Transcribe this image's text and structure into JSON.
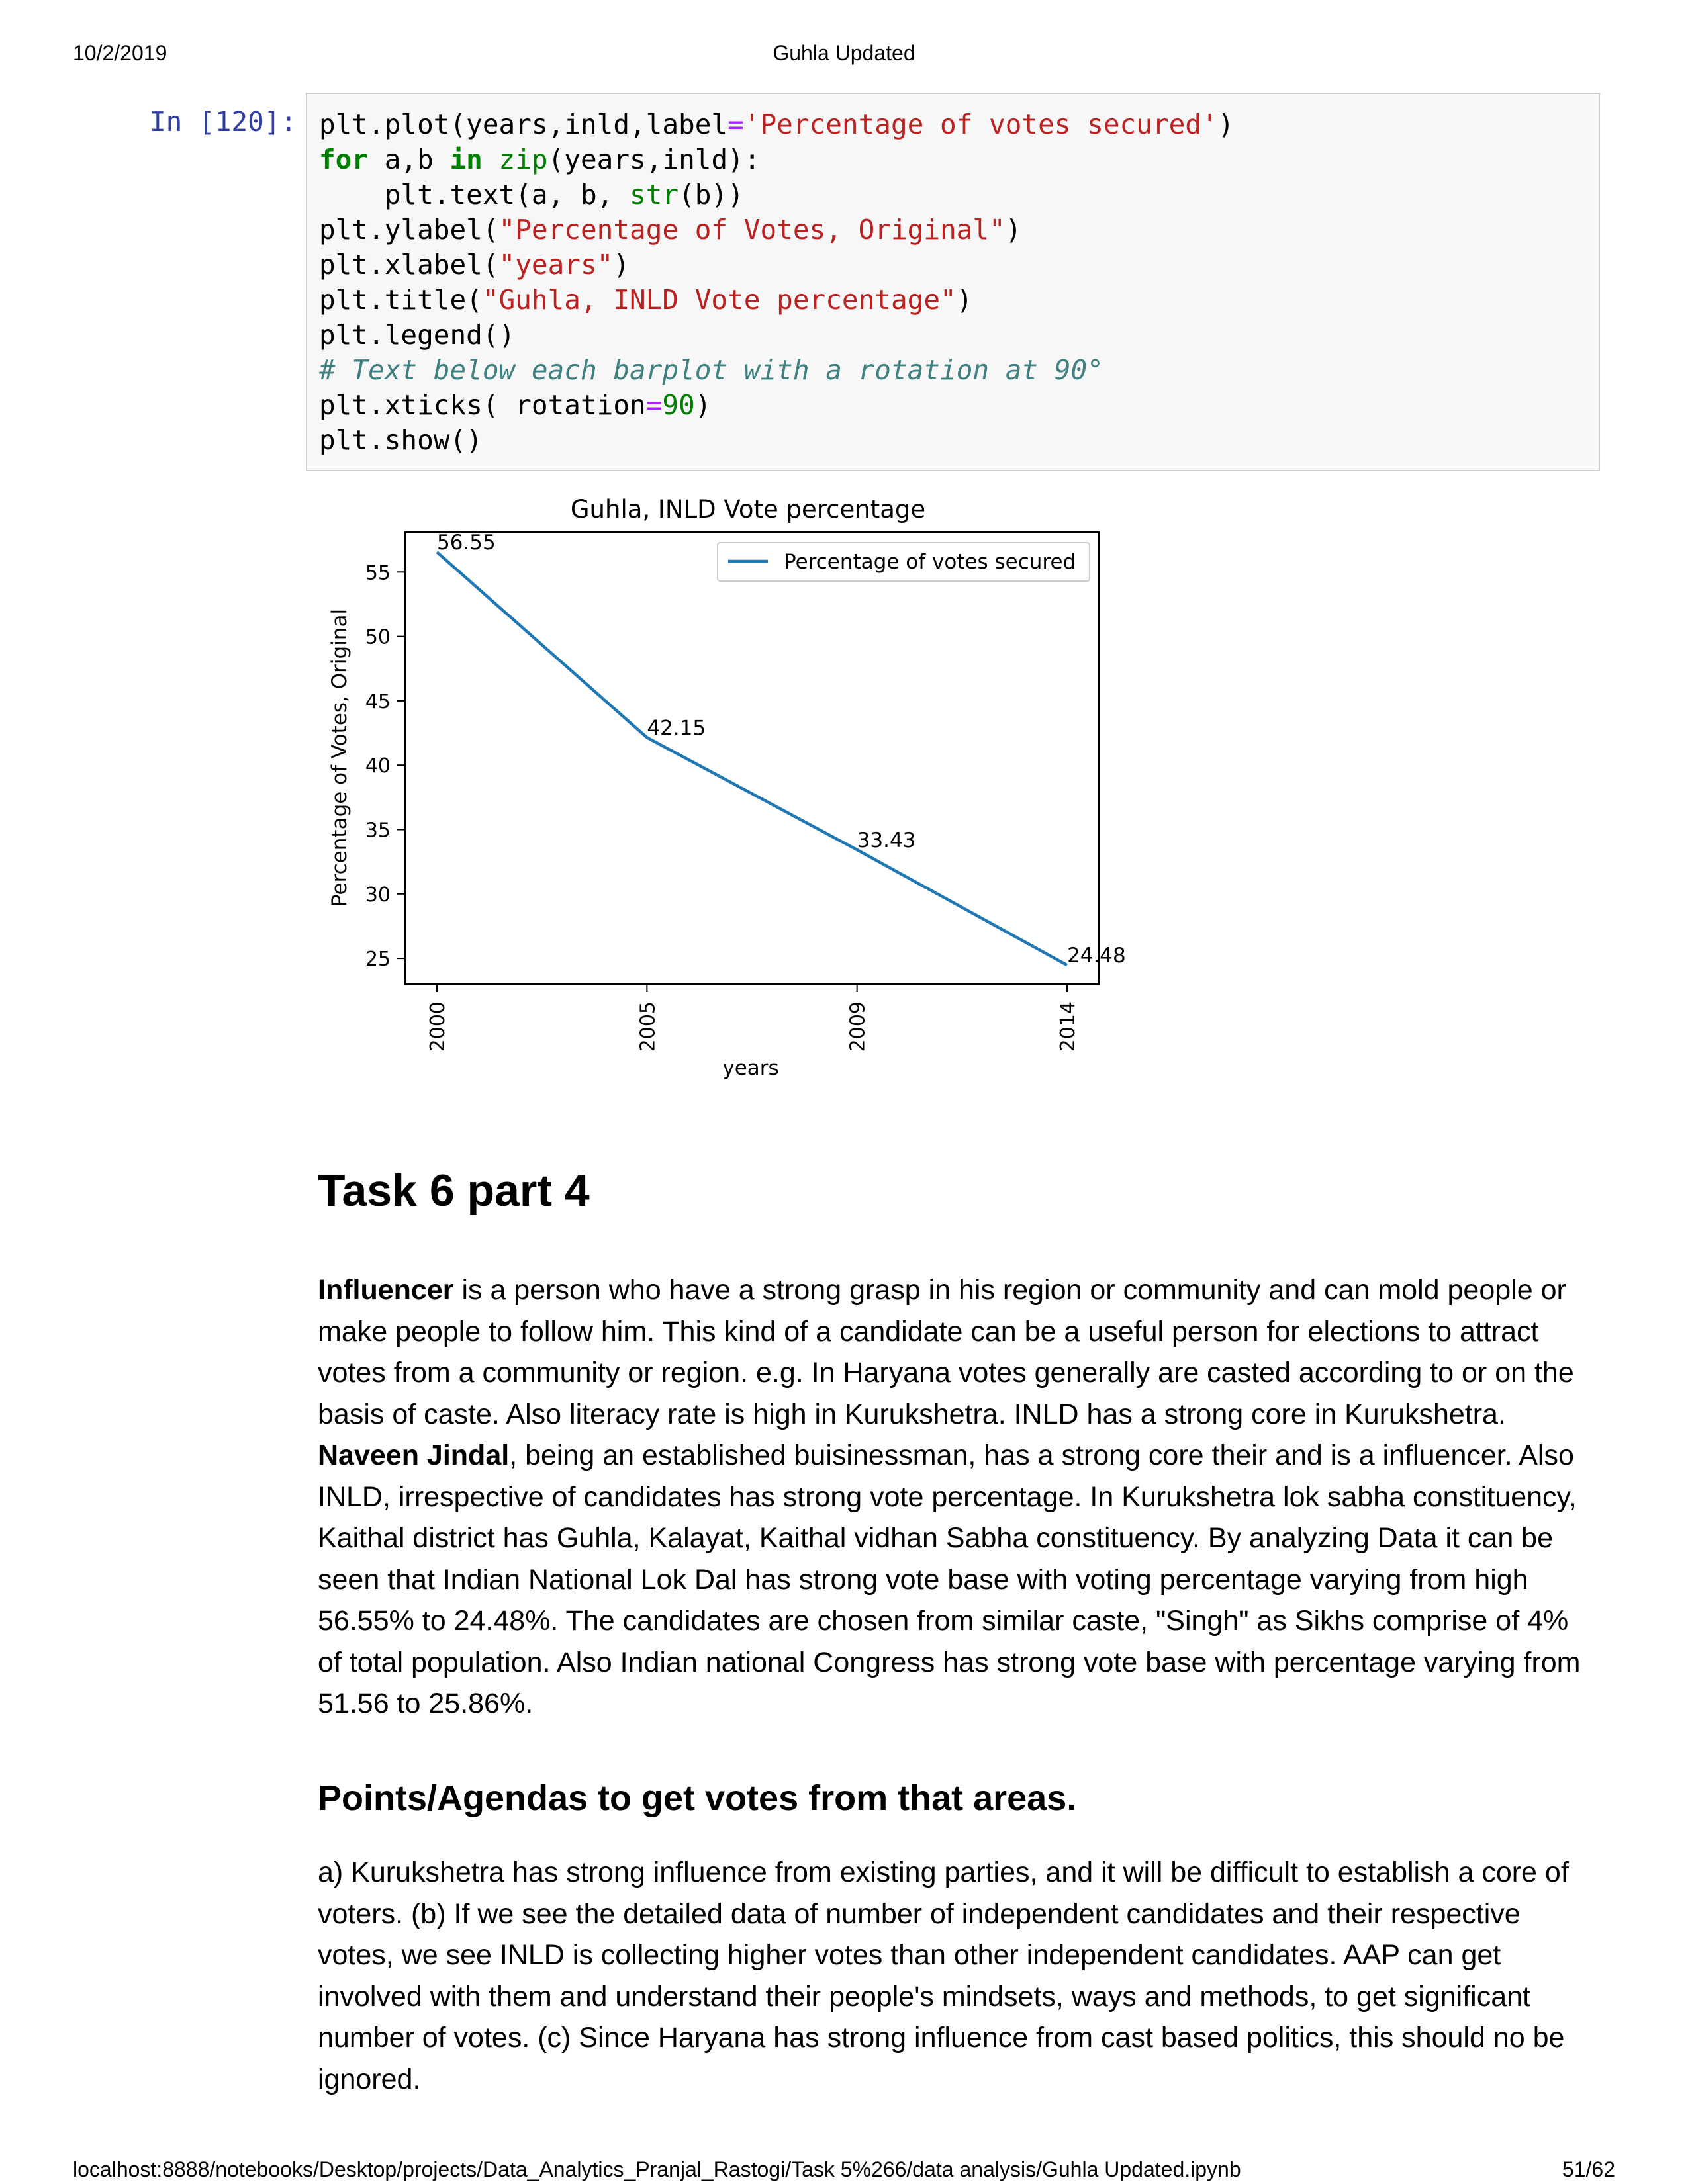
{
  "header": {
    "date": "10/2/2019",
    "title": "Guhla Updated"
  },
  "footer": {
    "url": "localhost:8888/notebooks/Desktop/projects/Data_Analytics_Pranjal_Rastogi/Task 5%266/data analysis/Guhla Updated.ipynb",
    "page": "51/62"
  },
  "cell": {
    "prompt": "In [120]:",
    "code_lines": [
      [
        [
          "plt.plot(years,inld,label",
          ""
        ],
        [
          "=",
          "op"
        ],
        [
          "'Percentage of votes secured'",
          "st"
        ],
        [
          ")",
          ""
        ]
      ],
      [
        [
          "for",
          "kw"
        ],
        [
          " a,b ",
          ""
        ],
        [
          "in",
          "kw"
        ],
        [
          " ",
          ""
        ],
        [
          "zip",
          "bi"
        ],
        [
          "(years,inld):",
          ""
        ]
      ],
      [
        [
          "    plt.text(a, b, ",
          ""
        ],
        [
          "str",
          "bi"
        ],
        [
          "(b))",
          ""
        ]
      ],
      [
        [
          "plt.ylabel(",
          ""
        ],
        [
          "\"Percentage of Votes, Original\"",
          "st"
        ],
        [
          ")",
          ""
        ]
      ],
      [
        [
          "plt.xlabel(",
          ""
        ],
        [
          "\"years\"",
          "st"
        ],
        [
          ")",
          ""
        ]
      ],
      [
        [
          "plt.title(",
          ""
        ],
        [
          "\"Guhla, INLD Vote percentage\"",
          "st"
        ],
        [
          ")",
          ""
        ]
      ],
      [
        [
          "plt.legend()",
          ""
        ]
      ],
      [
        [
          "# Text below each barplot with a rotation at 90°",
          "cm"
        ]
      ],
      [
        [
          "plt.xticks( rotation",
          ""
        ],
        [
          "=",
          "op"
        ],
        [
          "90",
          "nm"
        ],
        [
          ")",
          ""
        ]
      ],
      [
        [
          "plt.show()",
          ""
        ]
      ]
    ]
  },
  "chart_data": {
    "type": "line",
    "title": "Guhla, INLD Vote percentage",
    "xlabel": "years",
    "ylabel": "Percentage of Votes, Original",
    "categories": [
      "2000",
      "2005",
      "2009",
      "2014"
    ],
    "series": [
      {
        "name": "Percentage of votes secured",
        "values": [
          56.55,
          42.15,
          33.43,
          24.48
        ],
        "color": "#1f77b4"
      }
    ],
    "data_labels": [
      "56.55",
      "42.15",
      "33.43",
      "24.48"
    ],
    "yticks": [
      25,
      30,
      35,
      40,
      45,
      50,
      55
    ],
    "ylim": [
      23,
      58.1
    ],
    "xtick_rotation": 90,
    "legend": "upper right",
    "grid": false
  },
  "task": {
    "heading": "Task 6 part 4",
    "para1": [
      [
        "Influencer",
        true
      ],
      [
        " is a person who have a strong grasp in his region or community and can mold people or make people to follow him. This kind of a candidate can be a useful person for elections to attract votes from a community or region. e.g. In Haryana votes generally are casted according to or on the basis of caste. Also literacy rate is high in Kurukshetra. INLD has a strong core in Kurukshetra. ",
        false
      ],
      [
        "Naveen Jindal",
        true
      ],
      [
        ", being an established buisinessman, has a strong core their and is a influencer. Also INLD, irrespective of candidates has strong vote percentage. In Kurukshetra lok sabha constituency, Kaithal district has Guhla, Kalayat, Kaithal vidhan Sabha constituency. By analyzing Data it can be seen that Indian National Lok Dal has strong vote base with voting percentage varying from high 56.55% to 24.48%. The candidates are chosen from similar caste, \"Singh\" as Sikhs comprise of 4% of total population. Also Indian national Congress has strong vote base with percentage varying from 51.56 to 25.86%.",
        false
      ]
    ],
    "heading2": "Points/Agendas to get votes from that areas.",
    "para2": "a) Kurukshetra has strong influence from existing parties, and it will be difficult to establish a core of voters. (b) If we see the detailed data of number of independent candidates and their respective votes, we see INLD is collecting higher votes than other independent candidates. AAP can get involved with them and understand their people's mindsets, ways and methods, to get significant number of votes. (c) Since Haryana has strong influence from cast based politics, this should no be ignored."
  }
}
